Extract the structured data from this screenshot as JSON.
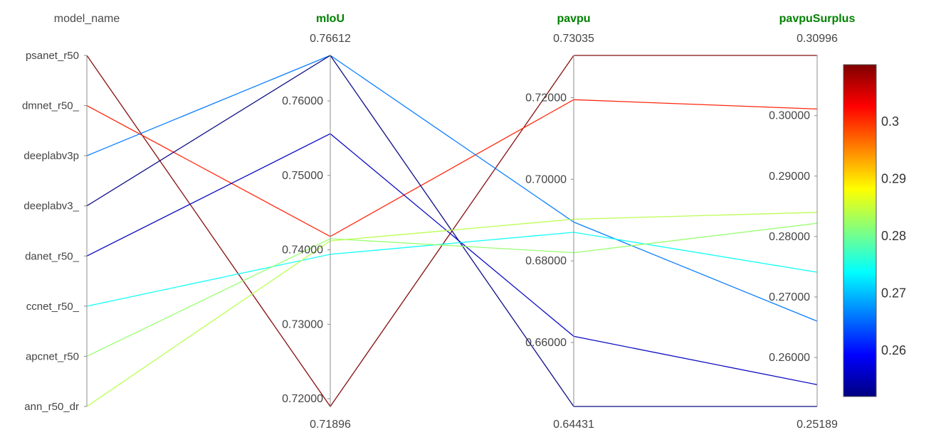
{
  "chart_data": {
    "type": "parallel_coordinates",
    "dimensions": [
      {
        "key": "model_name",
        "label": "model_name",
        "kind": "categorical"
      },
      {
        "key": "mIoU",
        "label": "mIoU",
        "kind": "numeric",
        "range": [
          0.71896,
          0.76612
        ],
        "range_labels": [
          "0.71896",
          "0.76612"
        ],
        "ticks": [
          0.72,
          0.73,
          0.74,
          0.75,
          0.76
        ],
        "tick_labels": [
          "0.72000",
          "0.73000",
          "0.74000",
          "0.75000",
          "0.76000"
        ]
      },
      {
        "key": "pavpu",
        "label": "pavpu",
        "kind": "numeric",
        "range": [
          0.64431,
          0.73035
        ],
        "range_labels": [
          "0.64431",
          "0.73035"
        ],
        "ticks": [
          0.66,
          0.68,
          0.7,
          0.72
        ],
        "tick_labels": [
          "0.66000",
          "0.68000",
          "0.70000",
          "0.72000"
        ]
      },
      {
        "key": "pavpuSurplus",
        "label": "pavpuSurplus",
        "kind": "numeric",
        "range": [
          0.25189,
          0.30996
        ],
        "range_labels": [
          "0.25189",
          "0.30996"
        ],
        "ticks": [
          0.26,
          0.27,
          0.28,
          0.29,
          0.3
        ],
        "tick_labels": [
          "0.26000",
          "0.27000",
          "0.28000",
          "0.29000",
          "0.30000"
        ]
      }
    ],
    "categories": [
      "psanet_r50",
      "dmnet_r50_",
      "deeplabv3p",
      "deeplabv3_",
      "danet_r50_",
      "ccnet_r50_",
      "apcnet_r50",
      "ann_r50_dr"
    ],
    "rows": [
      {
        "model_name": "psanet_r50",
        "mIoU": 0.71896,
        "pavpu": 0.73035,
        "pavpuSurplus": 0.30996
      },
      {
        "model_name": "dmnet_r50_",
        "mIoU": 0.7418,
        "pavpu": 0.7195,
        "pavpuSurplus": 0.3011
      },
      {
        "model_name": "deeplabv3p",
        "mIoU": 0.76612,
        "pavpu": 0.6895,
        "pavpuSurplus": 0.266
      },
      {
        "model_name": "deeplabv3_",
        "mIoU": 0.76612,
        "pavpu": 0.64431,
        "pavpuSurplus": 0.25189
      },
      {
        "model_name": "danet_r50_",
        "mIoU": 0.7556,
        "pavpu": 0.6615,
        "pavpuSurplus": 0.2555
      },
      {
        "model_name": "ccnet_r50_",
        "mIoU": 0.7394,
        "pavpu": 0.687,
        "pavpuSurplus": 0.2741
      },
      {
        "model_name": "apcnet_r50",
        "mIoU": 0.7415,
        "pavpu": 0.682,
        "pavpuSurplus": 0.2822
      },
      {
        "model_name": "ann_r50_dr",
        "mIoU": 0.7412,
        "pavpu": 0.6902,
        "pavpuSurplus": 0.284
      }
    ],
    "color_by": "pavpuSurplus",
    "colorscale": [
      "#000080",
      "#0000ff",
      "#0080ff",
      "#00ffff",
      "#80ff80",
      "#ffff00",
      "#ff8000",
      "#ff0000",
      "#800000"
    ],
    "colorbar": {
      "range": [
        0.25189,
        0.30996
      ],
      "ticks": [
        0.26,
        0.27,
        0.28,
        0.29,
        0.3
      ],
      "tick_labels": [
        "0.26",
        "0.27",
        "0.28",
        "0.29",
        "0.3"
      ]
    }
  }
}
